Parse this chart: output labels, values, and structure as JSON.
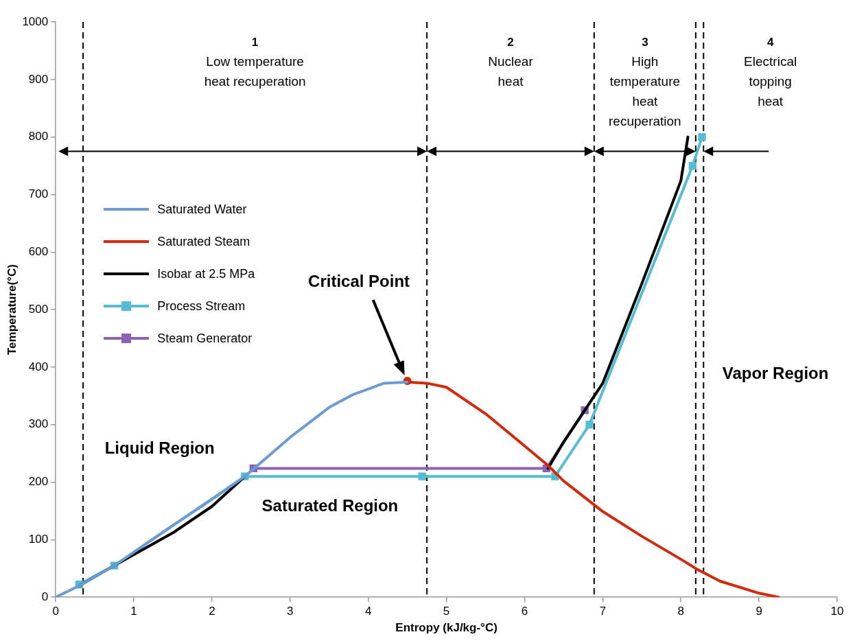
{
  "chart_data": {
    "type": "line",
    "xlabel": "Entropy (kJ/kg-°C)",
    "ylabel": "Temperature(°C)",
    "xlim": [
      0,
      10
    ],
    "ylim": [
      0,
      1000
    ],
    "xticks": [
      0,
      1,
      2,
      3,
      4,
      5,
      6,
      7,
      8,
      9,
      10
    ],
    "yticks": [
      0,
      100,
      200,
      300,
      400,
      500,
      600,
      700,
      800,
      900,
      1000
    ],
    "legend": "top left",
    "series": [
      {
        "name": "Saturated Water",
        "color": "#6b9bd2",
        "marker": "none",
        "x": [
          0,
          0.3,
          0.75,
          1.5,
          2,
          2.42,
          3,
          3.5,
          3.8,
          4,
          4.2,
          4.5
        ],
        "values": [
          0,
          20,
          55,
          125,
          170,
          210,
          278,
          330,
          352,
          362,
          372,
          374
        ]
      },
      {
        "name": "Saturated Steam",
        "color": "#d42a0c",
        "marker": "none",
        "x": [
          4.5,
          4.75,
          5,
          5.5,
          6,
          6.3,
          6.5,
          7,
          7.5,
          8,
          8.19,
          8.5,
          9,
          9.25
        ],
        "values": [
          374,
          372,
          365,
          319,
          263,
          229,
          202,
          149,
          106,
          66,
          50,
          28,
          7,
          0
        ]
      },
      {
        "name": "Isobar at 2.5 MPa",
        "color": "#000000",
        "marker": "none",
        "x": [
          0.3,
          0.75,
          1.5,
          2,
          2.42,
          2.5,
          6.3,
          6.5,
          6.77,
          7,
          7.5,
          8,
          8.09
        ],
        "values": [
          20,
          55,
          112,
          158,
          210,
          null,
          224,
          270,
          325,
          372,
          545,
          724,
          800
        ]
      },
      {
        "name": "Process Stream",
        "color": "#55bcd4",
        "marker": "square",
        "x": [
          0.3,
          0.75,
          2.42,
          4.69,
          6.39,
          6.83,
          8.15,
          8.27
        ],
        "values": [
          22,
          55,
          210,
          210,
          210,
          300,
          750,
          800
        ]
      },
      {
        "name": "Steam Generator",
        "color": "#8a63b8",
        "marker": "square",
        "x": [
          2.53,
          6.28,
          6.77
        ],
        "values": [
          224,
          224,
          325
        ]
      },
      {
        "type": "scatter",
        "color": "#d42a0c",
        "marker": "circle",
        "x": [
          4.5
        ],
        "values": [
          376
        ]
      }
    ],
    "ref_lines": [
      {
        "axis": "x",
        "value": 0.35,
        "line_style": "dashed",
        "color": "#000000"
      },
      {
        "axis": "x",
        "value": 4.75,
        "line_style": "dashed",
        "color": "#000000"
      },
      {
        "axis": "x",
        "value": 6.89,
        "line_style": "dashed",
        "color": "#000000"
      },
      {
        "axis": "x",
        "value": 8.19,
        "line_style": "dashed",
        "color": "#000000"
      },
      {
        "axis": "x",
        "value": 8.29,
        "line_style": "dashed",
        "color": "#000000"
      }
    ],
    "annotations": [
      "1\nLow temperature\nheat recuperation",
      "2\nNuclear\nheat",
      "3\nHigh\ntemperature\nheat\nrecuperation",
      "4\nElectrical\ntopping\nheat",
      "Critical Point",
      "Liquid Region",
      "Saturated Region",
      "Vapor Region"
    ]
  }
}
